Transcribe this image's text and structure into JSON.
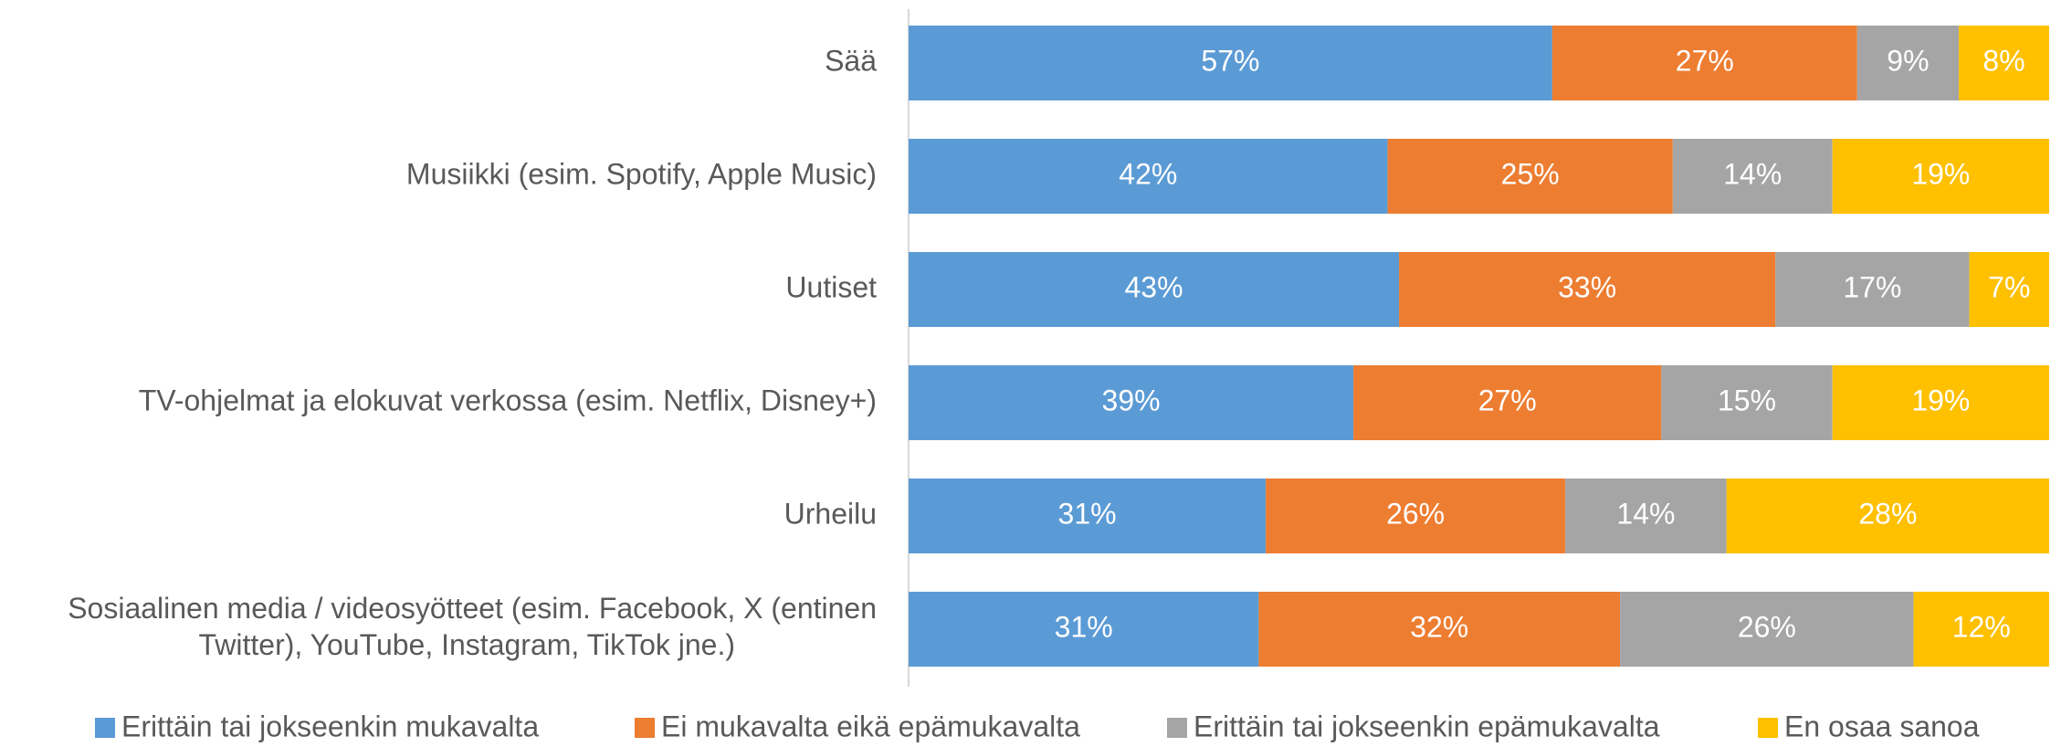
{
  "chart_data": {
    "type": "stacked_barh",
    "categories": [
      "Sää",
      "Musiikki (esim. Spotify, Apple Music)",
      "Uutiset",
      "TV-ohjelmat ja elokuvat verkossa (esim. Netflix, Disney+)",
      "Urheilu",
      "Sosiaalinen media / videosyötteet (esim. Facebook, X (entinen\nTwitter), YouTube, Instagram, TikTok jne.)"
    ],
    "series": [
      {
        "name": "Erittäin tai jokseenkin mukavalta",
        "color": "#5b9bd5",
        "values": [
          57,
          42,
          43,
          39,
          31,
          31
        ],
        "value_labels": [
          "57%",
          "42%",
          "43%",
          "39%",
          "31%",
          "31%"
        ]
      },
      {
        "name": "Ei mukavalta eikä epämukavalta",
        "color": "#ed7d31",
        "values": [
          27,
          25,
          33,
          27,
          26,
          32
        ],
        "value_labels": [
          "27%",
          "25%",
          "33%",
          "27%",
          "26%",
          "32%"
        ]
      },
      {
        "name": "Erittäin tai jokseenkin epämukavalta",
        "color": "#a5a5a5",
        "values": [
          9,
          14,
          17,
          15,
          14,
          26
        ],
        "value_labels": [
          "9%",
          "14%",
          "17%",
          "15%",
          "14%",
          "26%"
        ]
      },
      {
        "name": "En osaa sanoa",
        "color": "#ffc000",
        "values": [
          8,
          19,
          7,
          19,
          28,
          12
        ],
        "value_labels": [
          "8%",
          "19%",
          "7%",
          "19%",
          "28%",
          "12%"
        ]
      }
    ],
    "legend": "bottom"
  }
}
